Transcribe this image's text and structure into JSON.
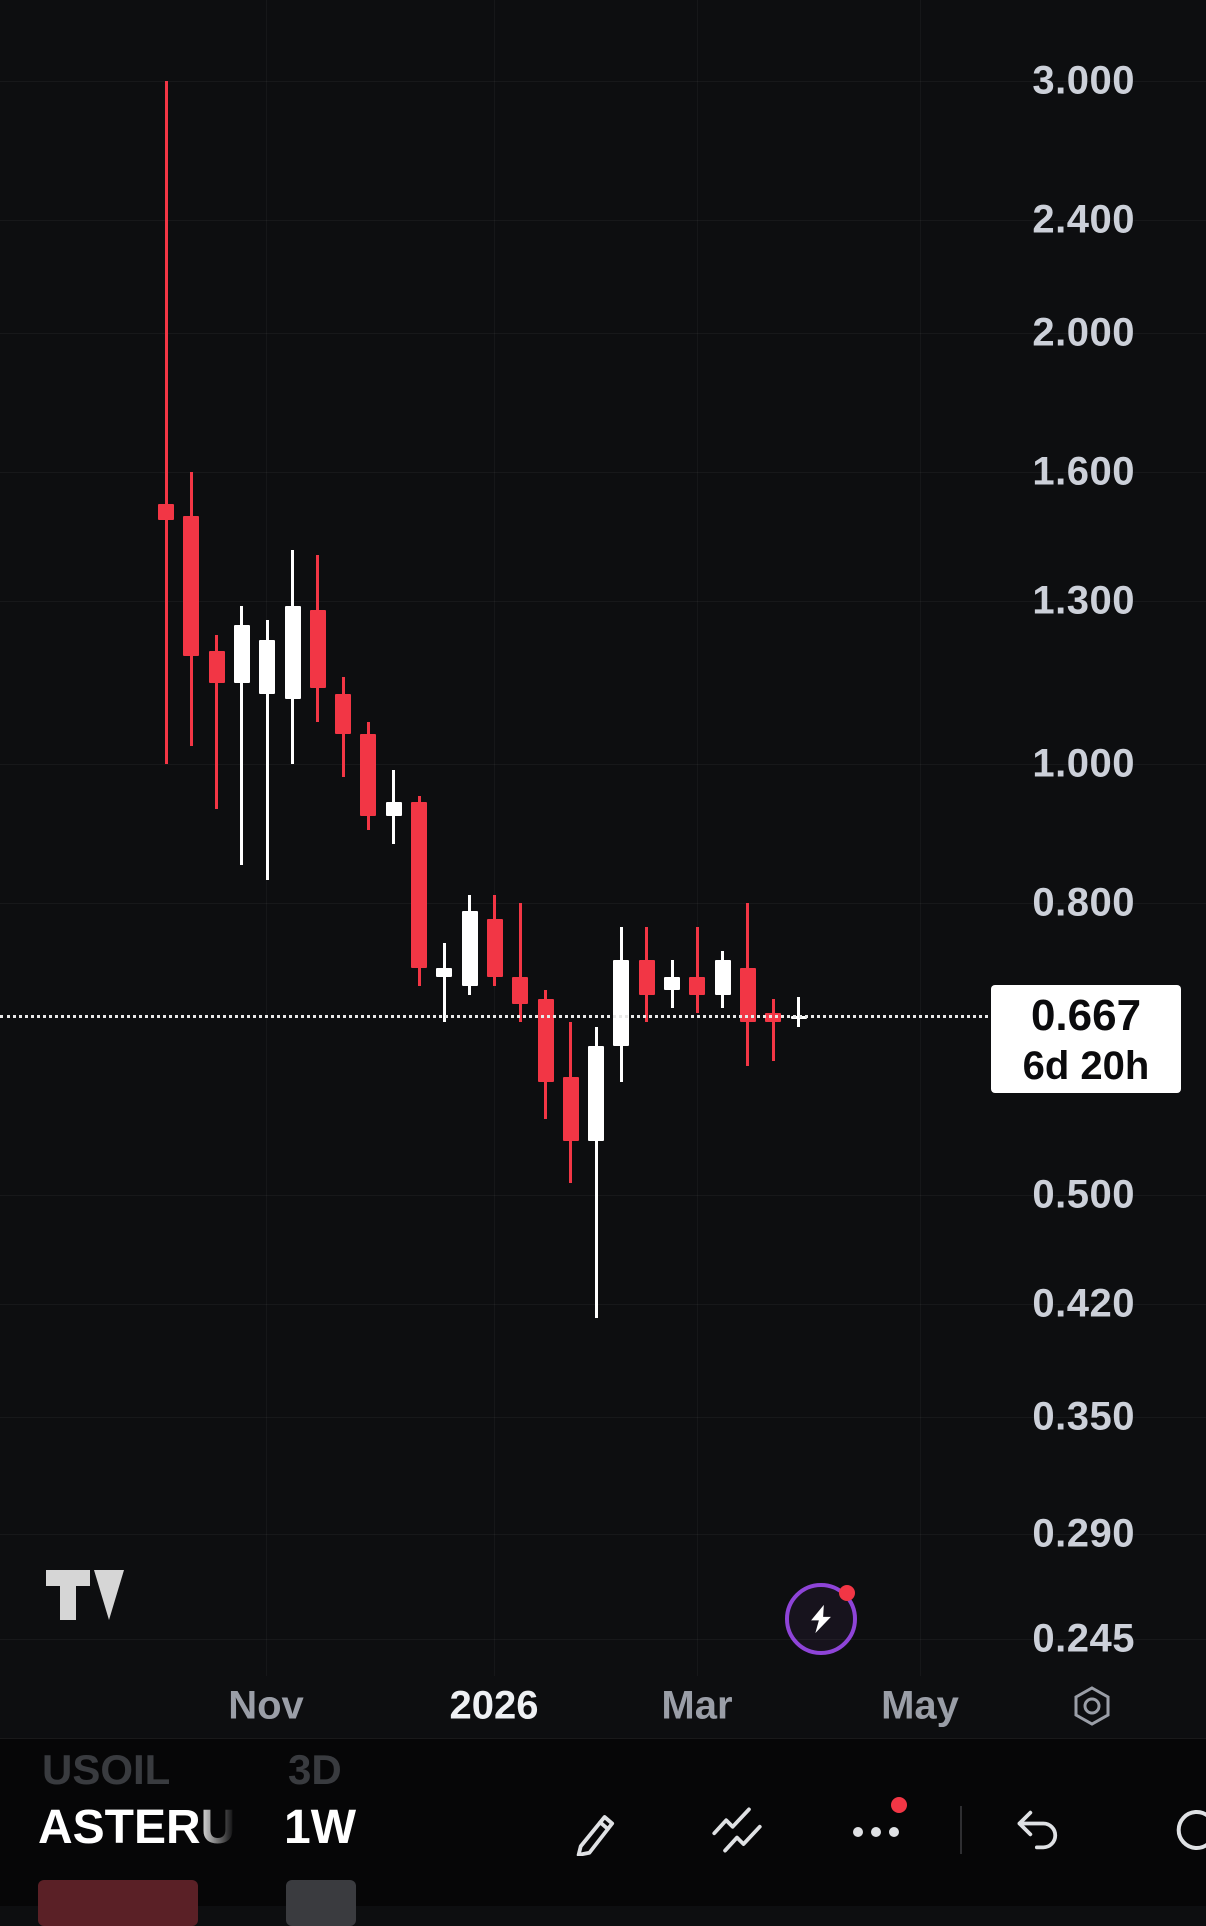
{
  "app": "TradingView",
  "colors": {
    "background": "#0d0e10",
    "candle_up": "#ffffff",
    "candle_down": "#f23645",
    "axis_text": "#ccd0d9",
    "muted_text": "#9a9ea7",
    "accent_purple": "#8e44d8",
    "notification_red": "#f23645",
    "price_label_bg": "#ffffff",
    "price_label_text": "#0b0b0d"
  },
  "price_axis": {
    "labels": [
      "3.000",
      "2.400",
      "2.000",
      "1.600",
      "1.300",
      "1.000",
      "0.800",
      "0.500",
      "0.420",
      "0.350",
      "0.290",
      "0.245"
    ]
  },
  "time_axis": {
    "labels": [
      {
        "text": "Nov",
        "emphasis": false
      },
      {
        "text": "2026",
        "emphasis": true
      },
      {
        "text": "Mar",
        "emphasis": false
      },
      {
        "text": "May",
        "emphasis": false
      }
    ]
  },
  "price_line": {
    "price": "0.667",
    "countdown": "6d 20h"
  },
  "bottom_bar": {
    "previous_item": {
      "symbol": "USOIL",
      "interval": "3D"
    },
    "current_item": {
      "symbol": "ASTERU",
      "interval": "1W"
    },
    "icons": [
      "draw-icon",
      "trend-lines-icon",
      "more-icon",
      "undo-icon",
      "partial-circle-icon"
    ]
  },
  "chart_data": {
    "type": "candlestick",
    "symbol": "ASTERU",
    "interval": "1W",
    "scale": "logarithmic",
    "title": "",
    "current_price": 0.667,
    "candle_countdown": "6d 20h",
    "y_axis_labels": [
      3.0,
      2.4,
      2.0,
      1.6,
      1.3,
      1.0,
      0.8,
      0.5,
      0.42,
      0.35,
      0.29,
      0.245
    ],
    "x_axis_labels": [
      "Nov",
      "2026",
      "Mar",
      "May"
    ],
    "legend_position": "none",
    "grid": "faint",
    "candles": [
      {
        "o": 1.52,
        "h": 3.0,
        "l": 1.0,
        "c": 1.48
      },
      {
        "o": 1.49,
        "h": 1.6,
        "l": 1.03,
        "c": 1.19
      },
      {
        "o": 1.2,
        "h": 1.23,
        "l": 0.93,
        "c": 1.14
      },
      {
        "o": 1.14,
        "h": 1.29,
        "l": 0.85,
        "c": 1.25
      },
      {
        "o": 1.12,
        "h": 1.26,
        "l": 0.83,
        "c": 1.22
      },
      {
        "o": 1.11,
        "h": 1.41,
        "l": 1.0,
        "c": 1.29
      },
      {
        "o": 1.28,
        "h": 1.4,
        "l": 1.07,
        "c": 1.13
      },
      {
        "o": 1.12,
        "h": 1.15,
        "l": 0.98,
        "c": 1.05
      },
      {
        "o": 1.05,
        "h": 1.07,
        "l": 0.9,
        "c": 0.92
      },
      {
        "o": 0.92,
        "h": 0.99,
        "l": 0.88,
        "c": 0.94
      },
      {
        "o": 0.94,
        "h": 0.95,
        "l": 0.7,
        "c": 0.72
      },
      {
        "o": 0.71,
        "h": 0.75,
        "l": 0.66,
        "c": 0.72
      },
      {
        "o": 0.7,
        "h": 0.81,
        "l": 0.69,
        "c": 0.79
      },
      {
        "o": 0.78,
        "h": 0.81,
        "l": 0.7,
        "c": 0.71
      },
      {
        "o": 0.71,
        "h": 0.8,
        "l": 0.66,
        "c": 0.68
      },
      {
        "o": 0.685,
        "h": 0.695,
        "l": 0.565,
        "c": 0.6
      },
      {
        "o": 0.605,
        "h": 0.66,
        "l": 0.51,
        "c": 0.545
      },
      {
        "o": 0.545,
        "h": 0.655,
        "l": 0.41,
        "c": 0.635
      },
      {
        "o": 0.635,
        "h": 0.77,
        "l": 0.6,
        "c": 0.73
      },
      {
        "o": 0.73,
        "h": 0.77,
        "l": 0.66,
        "c": 0.69
      },
      {
        "o": 0.695,
        "h": 0.73,
        "l": 0.675,
        "c": 0.71
      },
      {
        "o": 0.71,
        "h": 0.77,
        "l": 0.67,
        "c": 0.69
      },
      {
        "o": 0.69,
        "h": 0.74,
        "l": 0.675,
        "c": 0.73
      },
      {
        "o": 0.72,
        "h": 0.8,
        "l": 0.615,
        "c": 0.66
      },
      {
        "o": 0.67,
        "h": 0.685,
        "l": 0.62,
        "c": 0.66
      },
      {
        "o": 0.664,
        "h": 0.687,
        "l": 0.655,
        "c": 0.667
      }
    ]
  }
}
